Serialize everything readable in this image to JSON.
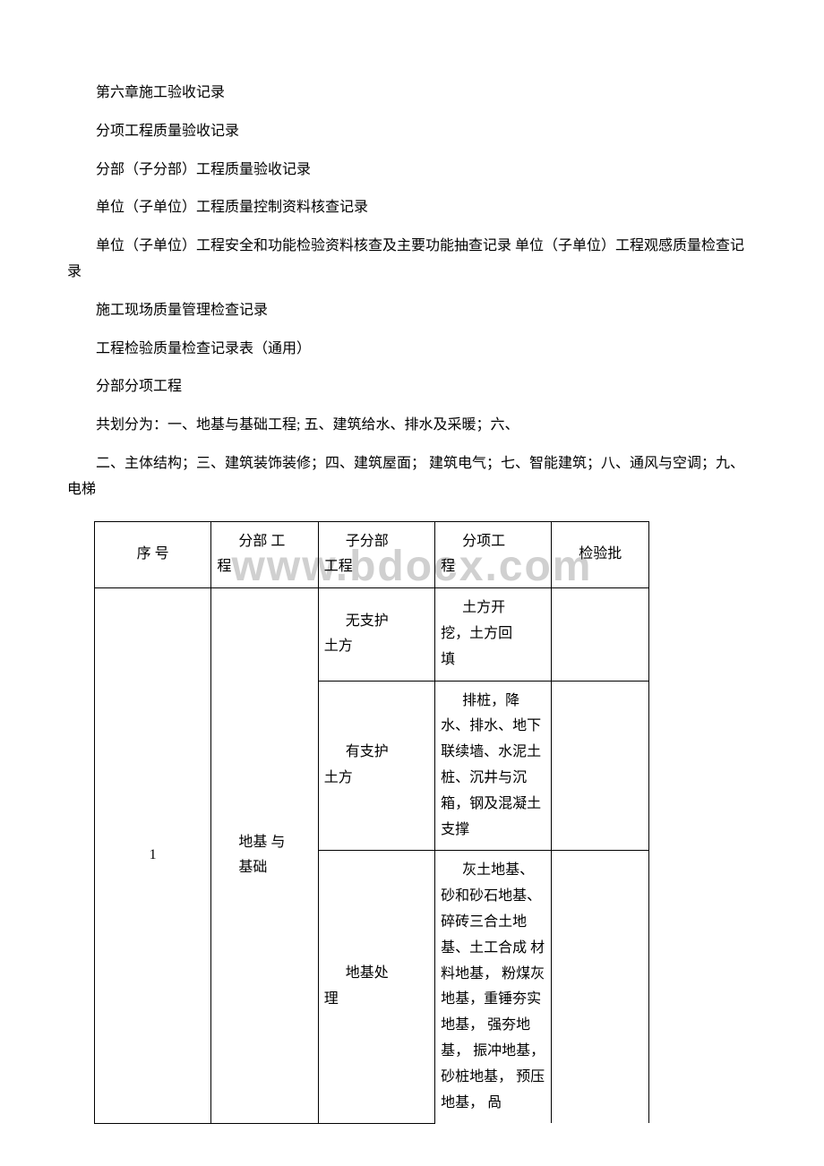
{
  "watermark": "www.bdocx.com",
  "paragraphs": {
    "p1": "第六章施工验收记录",
    "p2": "分项工程质量验收记录",
    "p3": "  分部（子分部）工程质量验收记录",
    "p4": "单位（子单位）工程质量控制资料核查记录",
    "p5": "单位（子单位）工程安全和功能检验资料核查及主要功能抽查记录 单位（子单位）工程观感质量检查记录",
    "p6": "施工现场质量管理检查记录",
    "p7": "工程检验质量检查记录表（通用）",
    "p8": "分部分项工程",
    "p9": "共划分为：一、地基与基础工程; 五、建筑给水、排水及采暖；六、",
    "p10": "二、主体结构；三、建筑装饰装修；四、建筑屋面； 建筑电气；七、智能建筑；八、通风与空调；九、电梯"
  },
  "table": {
    "headers": {
      "h1": "序 号",
      "h2_line1": "分部 工",
      "h2_line2": "程",
      "h3_line1": "子分部",
      "h3_line2": "工程",
      "h4_line1": "分项工",
      "h4_line2": "程",
      "h5": "检验批"
    },
    "row1_seq": "1",
    "row1_div_line1": "地基 与",
    "row1_div_line2": "基础",
    "sub1_name_line1": "无支护",
    "sub1_name_line2": "土方",
    "sub1_item_line1": "土方开",
    "sub1_item_line2": "挖，土方回",
    "sub1_item_line3": "填",
    "sub2_name_line1": "有支护",
    "sub2_name_line2": "土方",
    "sub2_item": "排桩，降水、排水、地下联续墙、水泥土桩、沉井与沉 箱，钢及混凝土支撑",
    "sub3_name_line1": "地基处",
    "sub3_name_line2": "理",
    "sub3_item": "灰土地基、砂和砂石地基、碎砖三合土地基、土工合成 材料地基， 粉煤灰地基，重锤夯实地基， 强夯地基， 振冲地基， 砂桩地基， 预压地基， 咼"
  }
}
